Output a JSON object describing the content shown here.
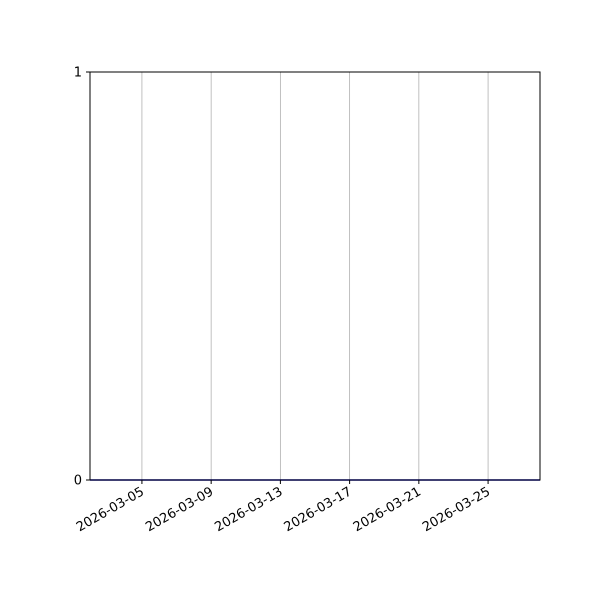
{
  "chart_data": {
    "type": "line",
    "title": "",
    "xlabel": "",
    "ylabel": "",
    "xlim": [
      "2026-03-02",
      "2026-03-28"
    ],
    "ylim": [
      0,
      1
    ],
    "x_ticks": [
      "2026-03-05",
      "2026-03-09",
      "2026-03-13",
      "2026-03-17",
      "2026-03-21",
      "2026-03-25"
    ],
    "y_ticks": [
      "0",
      "1"
    ],
    "grid": {
      "x": true,
      "y": false
    },
    "series": [
      {
        "x": [
          "2026-03-02",
          "2026-03-28"
        ],
        "y": [
          0,
          0
        ],
        "color": "#0000cc"
      }
    ],
    "colors": {
      "grid": "#b0b0b0",
      "axes": "#000000"
    }
  }
}
